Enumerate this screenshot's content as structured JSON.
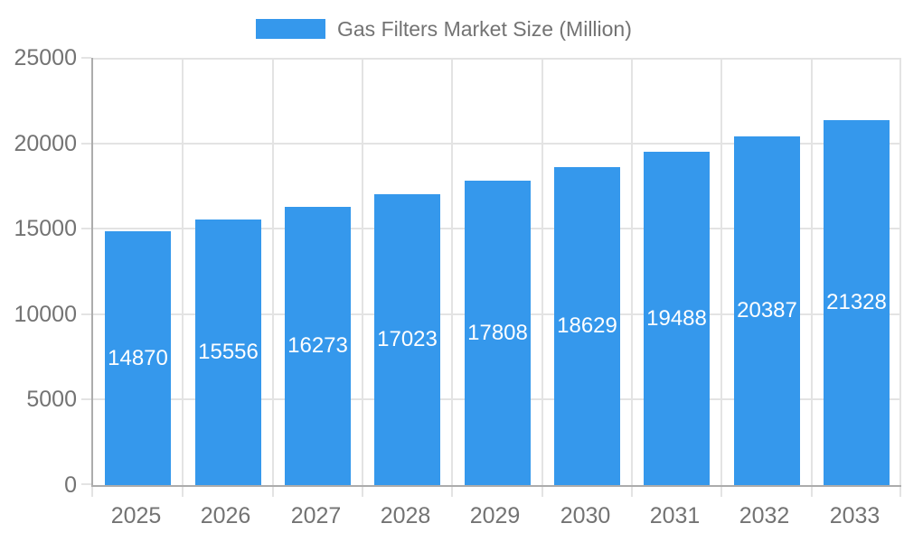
{
  "chart_data": {
    "type": "bar",
    "title": "Gas Filters Market Size (Million)",
    "categories": [
      "2025",
      "2026",
      "2027",
      "2028",
      "2029",
      "2030",
      "2031",
      "2032",
      "2033"
    ],
    "values": [
      14870,
      15556,
      16273,
      17023,
      17808,
      18629,
      19488,
      20387,
      21328
    ],
    "series": [
      {
        "name": "Gas Filters Market Size (Million)",
        "values": [
          14870,
          15556,
          16273,
          17023,
          17808,
          18629,
          19488,
          20387,
          21328
        ]
      }
    ],
    "xlabel": "",
    "ylabel": "",
    "ylim": [
      0,
      25000
    ],
    "y_ticks": [
      0,
      5000,
      10000,
      15000,
      20000,
      25000
    ],
    "grid": "on",
    "legend_position": "top",
    "bar_color": "#3598EC",
    "bar_label_color": "#ffffff",
    "axis_text_color": "#737373",
    "gridline_color": "#E3E3E3",
    "axis_line_color": "#ACACAC",
    "background_color": "#ffffff"
  }
}
